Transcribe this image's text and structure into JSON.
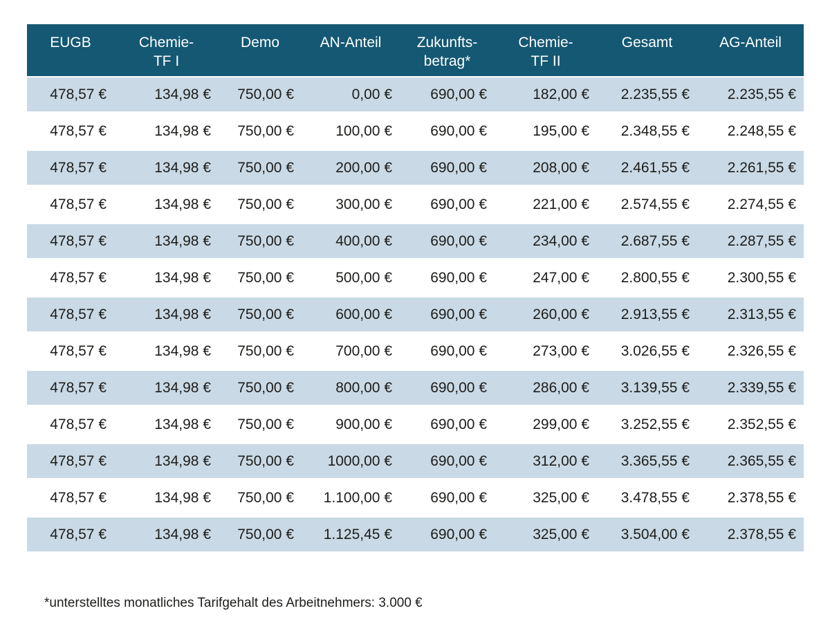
{
  "table": {
    "headers": [
      "EUGB",
      "Chemie-\nTF I",
      "Demo",
      "AN-Anteil",
      "Zukunfts-\nbetrag*",
      "Chemie-\nTF II",
      "Gesamt",
      "AG-Anteil"
    ],
    "rows": [
      [
        "478,57 €",
        "134,98 €",
        "750,00 €",
        "0,00 €",
        "690,00 €",
        "182,00 €",
        "2.235,55 €",
        "2.235,55 €"
      ],
      [
        "478,57 €",
        "134,98 €",
        "750,00 €",
        "100,00 €",
        "690,00 €",
        "195,00 €",
        "2.348,55 €",
        "2.248,55 €"
      ],
      [
        "478,57 €",
        "134,98 €",
        "750,00 €",
        "200,00 €",
        "690,00 €",
        "208,00 €",
        "2.461,55 €",
        "2.261,55 €"
      ],
      [
        "478,57 €",
        "134,98 €",
        "750,00 €",
        "300,00 €",
        "690,00 €",
        "221,00 €",
        "2.574,55 €",
        "2.274,55 €"
      ],
      [
        "478,57 €",
        "134,98 €",
        "750,00 €",
        "400,00 €",
        "690,00 €",
        "234,00 €",
        "2.687,55 €",
        "2.287,55 €"
      ],
      [
        "478,57 €",
        "134,98 €",
        "750,00 €",
        "500,00 €",
        "690,00 €",
        "247,00 €",
        "2.800,55 €",
        "2.300,55 €"
      ],
      [
        "478,57 €",
        "134,98 €",
        "750,00 €",
        "600,00 €",
        "690,00 €",
        "260,00 €",
        "2.913,55 €",
        "2.313,55 €"
      ],
      [
        "478,57 €",
        "134,98 €",
        "750,00 €",
        "700,00 €",
        "690,00 €",
        "273,00 €",
        "3.026,55 €",
        "2.326,55 €"
      ],
      [
        "478,57 €",
        "134,98 €",
        "750,00 €",
        "800,00 €",
        "690,00 €",
        "286,00 €",
        "3.139,55 €",
        "2.339,55 €"
      ],
      [
        "478,57 €",
        "134,98 €",
        "750,00 €",
        "900,00 €",
        "690,00 €",
        "299,00 €",
        "3.252,55 €",
        "2.352,55 €"
      ],
      [
        "478,57 €",
        "134,98 €",
        "750,00 €",
        "1000,00 €",
        "690,00 €",
        "312,00 €",
        "3.365,55 €",
        "2.365,55 €"
      ],
      [
        "478,57 €",
        "134,98 €",
        "750,00 €",
        "1.100,00 €",
        "690,00 €",
        "325,00 €",
        "3.478,55 €",
        "2.378,55 €"
      ],
      [
        "478,57 €",
        "134,98 €",
        "750,00 €",
        "1.125,45 €",
        "690,00 €",
        "325,00 €",
        "3.504,00 €",
        "2.378,55 €"
      ]
    ]
  },
  "footnote": "*unterstelltes monatliches Tarifgehalt des Arbeitnehmers: 3.000 €",
  "colors": {
    "header_bg": "#145873",
    "stripe_bg": "#c9d9e5",
    "header_text": "#ffffff",
    "body_text": "#1d1d1b"
  }
}
